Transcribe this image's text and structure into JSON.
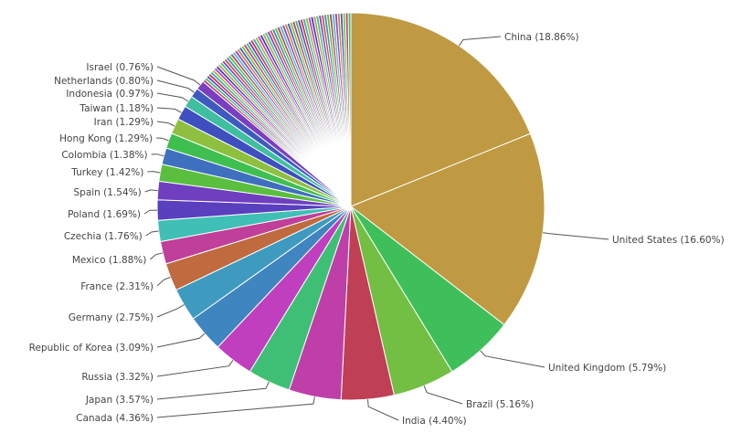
{
  "chart_data": {
    "type": "pie",
    "labels_on_chart": true,
    "slices": [
      {
        "name": "China",
        "value": 18.86,
        "label": "China (18.86%)",
        "color": "#BF9A42"
      },
      {
        "name": "United States",
        "value": 16.6,
        "label": "United States (16.60%)",
        "color": "#BF9A42"
      },
      {
        "name": "United Kingdom",
        "value": 5.79,
        "label": "United Kingdom (5.79%)",
        "color": "#3FBF5A"
      },
      {
        "name": "Brazil",
        "value": 5.16,
        "label": "Brazil (5.16%)",
        "color": "#72BF44"
      },
      {
        "name": "India",
        "value": 4.4,
        "label": "India (4.40%)",
        "color": "#BF3F55"
      },
      {
        "name": "Canada",
        "value": 4.36,
        "label": "Canada (4.36%)",
        "color": "#BF3FA8"
      },
      {
        "name": "Japan",
        "value": 3.57,
        "label": "Japan (3.57%)",
        "color": "#3FBF75"
      },
      {
        "name": "Russia",
        "value": 3.32,
        "label": "Russia (3.32%)",
        "color": "#BF3FBF"
      },
      {
        "name": "Republic of Korea",
        "value": 3.09,
        "label": "Republic of Korea (3.09%)",
        "color": "#3F85BF"
      },
      {
        "name": "Germany",
        "value": 2.75,
        "label": "Germany (2.75%)",
        "color": "#3F9ABF"
      },
      {
        "name": "France",
        "value": 2.31,
        "label": "France (2.31%)",
        "color": "#BF6A3F"
      },
      {
        "name": "Mexico",
        "value": 1.88,
        "label": "Mexico (1.88%)",
        "color": "#BF3F9A"
      },
      {
        "name": "Czechia",
        "value": 1.76,
        "label": "Czechia (1.76%)",
        "color": "#3FBFB5"
      },
      {
        "name": "Poland",
        "value": 1.69,
        "label": "Poland (1.69%)",
        "color": "#5A3FBF"
      },
      {
        "name": "Spain",
        "value": 1.54,
        "label": "Spain (1.54%)",
        "color": "#6F3FBF"
      },
      {
        "name": "Turkey",
        "value": 1.42,
        "label": "Turkey (1.42%)",
        "color": "#5ABF3F"
      },
      {
        "name": "Colombia",
        "value": 1.38,
        "label": "Colombia (1.38%)",
        "color": "#3F70BF"
      },
      {
        "name": "Hong Kong",
        "value": 1.29,
        "label": "Hong Kong (1.29%)",
        "color": "#3FBF4F"
      },
      {
        "name": "Iran",
        "value": 1.29,
        "label": "Iran (1.29%)",
        "color": "#8FBF3F"
      },
      {
        "name": "Taiwan",
        "value": 1.18,
        "label": "Taiwan (1.18%)",
        "color": "#3F4FBF"
      },
      {
        "name": "Indonesia",
        "value": 0.97,
        "label": "Indonesia (0.97%)",
        "color": "#3FBFA0"
      },
      {
        "name": "Netherlands",
        "value": 0.8,
        "label": "Netherlands (0.80%)",
        "color": "#3F5ABF"
      },
      {
        "name": "Israel",
        "value": 0.76,
        "label": "Israel (0.76%)",
        "color": "#7A3FBF"
      }
    ],
    "other_small_slices": {
      "total": 13.83,
      "count": 62,
      "colors": [
        "#BF3F7F",
        "#3FBF6A",
        "#6A3FBF",
        "#BF3F3F",
        "#3FAABF",
        "#9ABF3F",
        "#BF3FBF",
        "#3F3FBF",
        "#BFA03F",
        "#3FBF9A",
        "#8A3FBF",
        "#BF5A3F",
        "#3F8ABF",
        "#5FBF3F",
        "#BF3F6A",
        "#3FBFBF",
        "#A03FBF",
        "#BF8A3F",
        "#3F5FBF",
        "#7FBF3F"
      ]
    }
  }
}
